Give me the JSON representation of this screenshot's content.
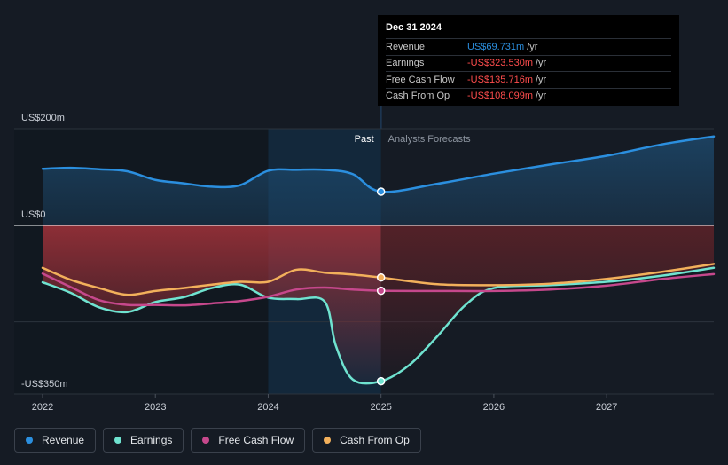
{
  "chart_data": {
    "type": "line",
    "y_axis_labels": {
      "top": "US$200m",
      "zero": "US$0",
      "bottom": "-US$350m"
    },
    "ylim": [
      -350,
      200
    ],
    "xlim": [
      2022.0,
      2027.95
    ],
    "x_ticks": [
      "2022",
      "2023",
      "2024",
      "2025",
      "2026",
      "2027"
    ],
    "divider": {
      "x": 2025.0,
      "past_label": "Past",
      "forecast_label": "Analysts Forecasts"
    },
    "highlight_band": [
      2024.0,
      2025.0
    ],
    "series": [
      {
        "name": "Revenue",
        "color": "#2b8fdf",
        "fill": true,
        "x": [
          2022.0,
          2022.25,
          2022.5,
          2022.75,
          2023.0,
          2023.25,
          2023.5,
          2023.75,
          2024.0,
          2024.25,
          2024.5,
          2024.75,
          2025.0,
          2025.5,
          2026.0,
          2026.5,
          2027.0,
          2027.5,
          2027.95
        ],
        "y": [
          117,
          119,
          116,
          112,
          94,
          87,
          80,
          83,
          113,
          115,
          115,
          106,
          69.7,
          86,
          107,
          126,
          144,
          168,
          184
        ]
      },
      {
        "name": "Earnings",
        "color": "#6fe3d0",
        "fill": false,
        "x": [
          2022.0,
          2022.25,
          2022.5,
          2022.75,
          2023.0,
          2023.25,
          2023.5,
          2023.75,
          2024.0,
          2024.25,
          2024.5,
          2024.6,
          2024.75,
          2025.0,
          2025.25,
          2025.5,
          2025.75,
          2026.0,
          2026.5,
          2027.0,
          2027.5,
          2027.95
        ],
        "y": [
          -118,
          -140,
          -170,
          -180,
          -159,
          -149,
          -130,
          -123,
          -150,
          -153,
          -158,
          -250,
          -320,
          -323.5,
          -290,
          -230,
          -165,
          -130,
          -124,
          -117,
          -104,
          -88
        ]
      },
      {
        "name": "Free Cash Flow",
        "color": "#c6488c",
        "fill": false,
        "x": [
          2022.0,
          2022.25,
          2022.5,
          2022.75,
          2023.0,
          2023.25,
          2023.5,
          2023.75,
          2024.0,
          2024.25,
          2024.5,
          2024.75,
          2025.0,
          2025.5,
          2026.0,
          2026.5,
          2027.0,
          2027.5,
          2027.95
        ],
        "y": [
          -100,
          -128,
          -155,
          -165,
          -165,
          -166,
          -162,
          -157,
          -148,
          -133,
          -129,
          -133,
          -135.7,
          -136,
          -136,
          -133,
          -125,
          -111,
          -101
        ]
      },
      {
        "name": "Cash From Op",
        "color": "#f2b05b",
        "fill": false,
        "x": [
          2022.0,
          2022.25,
          2022.5,
          2022.75,
          2023.0,
          2023.25,
          2023.5,
          2023.75,
          2024.0,
          2024.25,
          2024.5,
          2024.75,
          2025.0,
          2025.5,
          2026.0,
          2026.5,
          2027.0,
          2027.5,
          2027.95
        ],
        "y": [
          -88,
          -113,
          -130,
          -144,
          -136,
          -130,
          -123,
          -117,
          -117,
          -92,
          -98,
          -102,
          -108.1,
          -122,
          -124,
          -121,
          -111,
          -96,
          -80
        ]
      }
    ]
  },
  "tooltip": {
    "date": "Dec 31 2024",
    "rows": [
      {
        "label": "Revenue",
        "value": "US$69.731m",
        "unit": "/yr",
        "color": "#2b8fdf"
      },
      {
        "label": "Earnings",
        "value": "-US$323.530m",
        "unit": "/yr",
        "color": "#ff4d4d"
      },
      {
        "label": "Free Cash Flow",
        "value": "-US$135.716m",
        "unit": "/yr",
        "color": "#ff4d4d"
      },
      {
        "label": "Cash From Op",
        "value": "-US$108.099m",
        "unit": "/yr",
        "color": "#ff4d4d"
      }
    ]
  },
  "legend": [
    {
      "label": "Revenue",
      "color": "#2b8fdf"
    },
    {
      "label": "Earnings",
      "color": "#6fe3d0"
    },
    {
      "label": "Free Cash Flow",
      "color": "#c6488c"
    },
    {
      "label": "Cash From Op",
      "color": "#f2b05b"
    }
  ]
}
